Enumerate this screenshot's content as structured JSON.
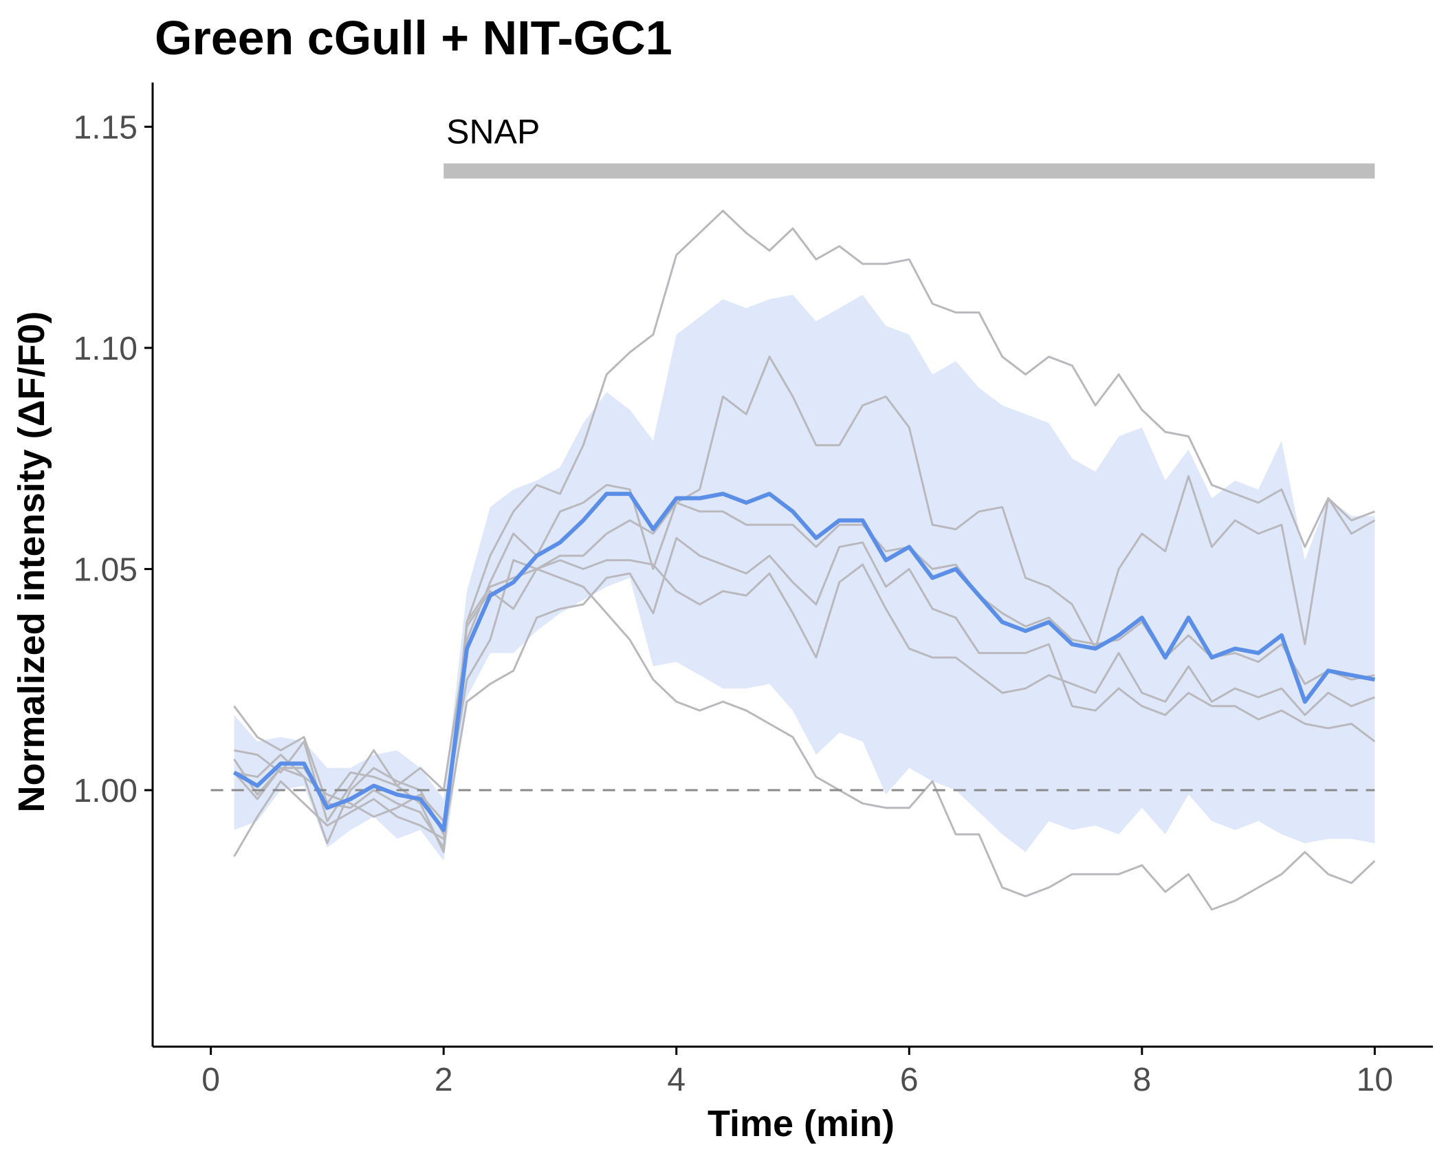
{
  "colors": {
    "mean_line": "#5b8ee6",
    "ribbon": "#dfe8fa",
    "traces": "#b9b9bd",
    "snap_bar": "#bebebe",
    "baseline": "#8a8a8a",
    "axis": "#000000",
    "tick_text": "#4d4d4d"
  },
  "chart_data": {
    "type": "line",
    "title": "Green cGull + NIT-GC1",
    "xlabel": "Time (min)",
    "ylabel": "Normalized intensity (ΔF/F0)",
    "xlim": [
      -0.5,
      10.5
    ],
    "ylim": [
      0.942,
      1.16
    ],
    "xticks": [
      0,
      2,
      4,
      6,
      8,
      10
    ],
    "xtick_labels": [
      "0",
      "2",
      "4",
      "6",
      "8",
      "10"
    ],
    "yticks": [
      1.0,
      1.05,
      1.1,
      1.15
    ],
    "ytick_labels": [
      "1.00",
      "1.05",
      "1.10",
      "1.15"
    ],
    "grid": false,
    "legend": "none",
    "baseline_y": 1.0,
    "annotation": {
      "label": "SNAP",
      "x_start": 2,
      "x_end": 10,
      "y": 1.14
    },
    "x": [
      0.2,
      0.4,
      0.6,
      0.8,
      1.0,
      1.2,
      1.4,
      1.6,
      1.8,
      2.0,
      2.2,
      2.4,
      2.6,
      2.8,
      3.0,
      3.2,
      3.4,
      3.6,
      3.8,
      4.0,
      4.2,
      4.4,
      4.6,
      4.8,
      5.0,
      5.2,
      5.4,
      5.6,
      5.8,
      6.0,
      6.2,
      6.4,
      6.6,
      6.8,
      7.0,
      7.2,
      7.4,
      7.6,
      7.8,
      8.0,
      8.2,
      8.4,
      8.6,
      8.8,
      9.0,
      9.2,
      9.4,
      9.6,
      9.8,
      10.0
    ],
    "mean": {
      "name": "mean",
      "values": [
        1.004,
        1.001,
        1.006,
        1.006,
        0.996,
        0.998,
        1.001,
        0.999,
        0.998,
        0.991,
        1.032,
        1.044,
        1.047,
        1.053,
        1.056,
        1.061,
        1.067,
        1.067,
        1.059,
        1.066,
        1.066,
        1.067,
        1.065,
        1.067,
        1.063,
        1.057,
        1.061,
        1.061,
        1.052,
        1.055,
        1.048,
        1.05,
        1.044,
        1.038,
        1.036,
        1.038,
        1.033,
        1.032,
        1.035,
        1.039,
        1.03,
        1.039,
        1.03,
        1.032,
        1.031,
        1.035,
        1.02,
        1.027,
        1.026,
        1.025
      ]
    },
    "ribbon_upper": [
      1.017,
      1.011,
      1.012,
      1.011,
      1.005,
      1.005,
      1.008,
      1.009,
      1.005,
      0.998,
      1.045,
      1.064,
      1.068,
      1.07,
      1.073,
      1.083,
      1.09,
      1.086,
      1.079,
      1.103,
      1.107,
      1.111,
      1.109,
      1.111,
      1.112,
      1.106,
      1.109,
      1.112,
      1.105,
      1.103,
      1.094,
      1.097,
      1.091,
      1.087,
      1.085,
      1.083,
      1.075,
      1.072,
      1.08,
      1.082,
      1.07,
      1.077,
      1.066,
      1.07,
      1.068,
      1.079,
      1.052,
      1.066,
      1.062,
      1.062
    ],
    "ribbon_lower": [
      0.991,
      0.993,
      1.0,
      1.001,
      0.987,
      0.991,
      0.994,
      0.989,
      0.991,
      0.984,
      1.021,
      1.031,
      1.031,
      1.036,
      1.04,
      1.043,
      1.046,
      1.048,
      1.028,
      1.029,
      1.026,
      1.023,
      1.023,
      1.024,
      1.018,
      1.008,
      1.013,
      1.011,
      0.999,
      1.005,
      1.002,
      1.0,
      0.995,
      0.99,
      0.986,
      0.993,
      0.991,
      0.992,
      0.99,
      0.996,
      0.99,
      0.999,
      0.993,
      0.991,
      0.993,
      0.99,
      0.988,
      0.989,
      0.989,
      0.988
    ],
    "series": [
      {
        "values": [
          1.019,
          1.012,
          1.009,
          1.012,
          0.997,
          1.004,
          1.003,
          1.001,
          0.997,
          0.986,
          1.038,
          1.053,
          1.063,
          1.069,
          1.067,
          1.078,
          1.094,
          1.099,
          1.103,
          1.121,
          1.126,
          1.131,
          1.126,
          1.122,
          1.127,
          1.12,
          1.123,
          1.119,
          1.119,
          1.12,
          1.11,
          1.108,
          1.108,
          1.098,
          1.094,
          1.098,
          1.096,
          1.087,
          1.094,
          1.086,
          1.081,
          1.08,
          1.069,
          1.067,
          1.065,
          1.068,
          1.055,
          1.066,
          1.061,
          1.063
        ]
      },
      {
        "values": [
          1.009,
          1.008,
          1.004,
          1.011,
          0.993,
          1.001,
          1.009,
          1.001,
          1.005,
          1.0,
          1.034,
          1.047,
          1.058,
          1.053,
          1.063,
          1.065,
          1.069,
          1.068,
          1.05,
          1.065,
          1.068,
          1.089,
          1.085,
          1.098,
          1.089,
          1.078,
          1.078,
          1.087,
          1.089,
          1.082,
          1.06,
          1.059,
          1.063,
          1.064,
          1.048,
          1.046,
          1.042,
          1.032,
          1.05,
          1.058,
          1.054,
          1.071,
          1.055,
          1.061,
          1.058,
          1.06,
          1.033,
          1.066,
          1.058,
          1.061
        ]
      },
      {
        "values": [
          1.007,
          0.999,
          1.005,
          1.003,
          0.999,
          0.997,
          0.994,
          0.996,
          0.999,
          0.993,
          1.025,
          1.034,
          1.052,
          1.05,
          1.052,
          1.05,
          1.052,
          1.052,
          1.051,
          1.045,
          1.042,
          1.045,
          1.044,
          1.049,
          1.04,
          1.03,
          1.047,
          1.051,
          1.041,
          1.032,
          1.03,
          1.03,
          1.026,
          1.022,
          1.023,
          1.026,
          1.024,
          1.022,
          1.031,
          1.022,
          1.02,
          1.028,
          1.02,
          1.023,
          1.021,
          1.023,
          1.017,
          1.022,
          1.019,
          1.021
        ]
      },
      {
        "values": [
          0.985,
          0.994,
          1.002,
          0.997,
          0.992,
          0.995,
          0.998,
          0.994,
          0.992,
          0.989,
          1.02,
          1.024,
          1.027,
          1.039,
          1.041,
          1.042,
          1.048,
          1.049,
          1.04,
          1.057,
          1.053,
          1.051,
          1.049,
          1.053,
          1.047,
          1.042,
          1.055,
          1.056,
          1.046,
          1.05,
          1.041,
          1.039,
          1.031,
          1.031,
          1.031,
          1.033,
          1.019,
          1.018,
          1.023,
          1.019,
          1.017,
          1.022,
          1.019,
          1.019,
          1.016,
          1.018,
          1.015,
          1.014,
          1.015,
          1.011
        ]
      },
      {
        "values": [
          1.004,
          0.998,
          1.005,
          1.005,
          0.997,
          0.996,
          1.0,
          0.997,
          0.995,
          0.987,
          1.038,
          1.046,
          1.048,
          1.05,
          1.053,
          1.053,
          1.058,
          1.061,
          1.058,
          1.065,
          1.063,
          1.063,
          1.06,
          1.06,
          1.06,
          1.055,
          1.06,
          1.06,
          1.054,
          1.055,
          1.05,
          1.051,
          1.044,
          1.04,
          1.037,
          1.039,
          1.034,
          1.033,
          1.034,
          1.038,
          1.03,
          1.035,
          1.03,
          1.031,
          1.029,
          1.033,
          1.024,
          1.027,
          1.025,
          1.026
        ]
      },
      {
        "values": [
          1.004,
          1.003,
          1.008,
          1.003,
          0.988,
          1.0,
          1.005,
          1.002,
          1.0,
          0.99,
          1.037,
          1.045,
          1.041,
          1.05,
          1.048,
          1.046,
          1.04,
          1.034,
          1.025,
          1.02,
          1.018,
          1.02,
          1.018,
          1.015,
          1.012,
          1.003,
          1.0,
          0.997,
          0.996,
          0.996,
          1.002,
          0.99,
          0.99,
          0.978,
          0.976,
          0.978,
          0.981,
          0.981,
          0.981,
          0.983,
          0.977,
          0.981,
          0.973,
          0.975,
          0.978,
          0.981,
          0.986,
          0.981,
          0.979,
          0.984
        ]
      }
    ]
  }
}
